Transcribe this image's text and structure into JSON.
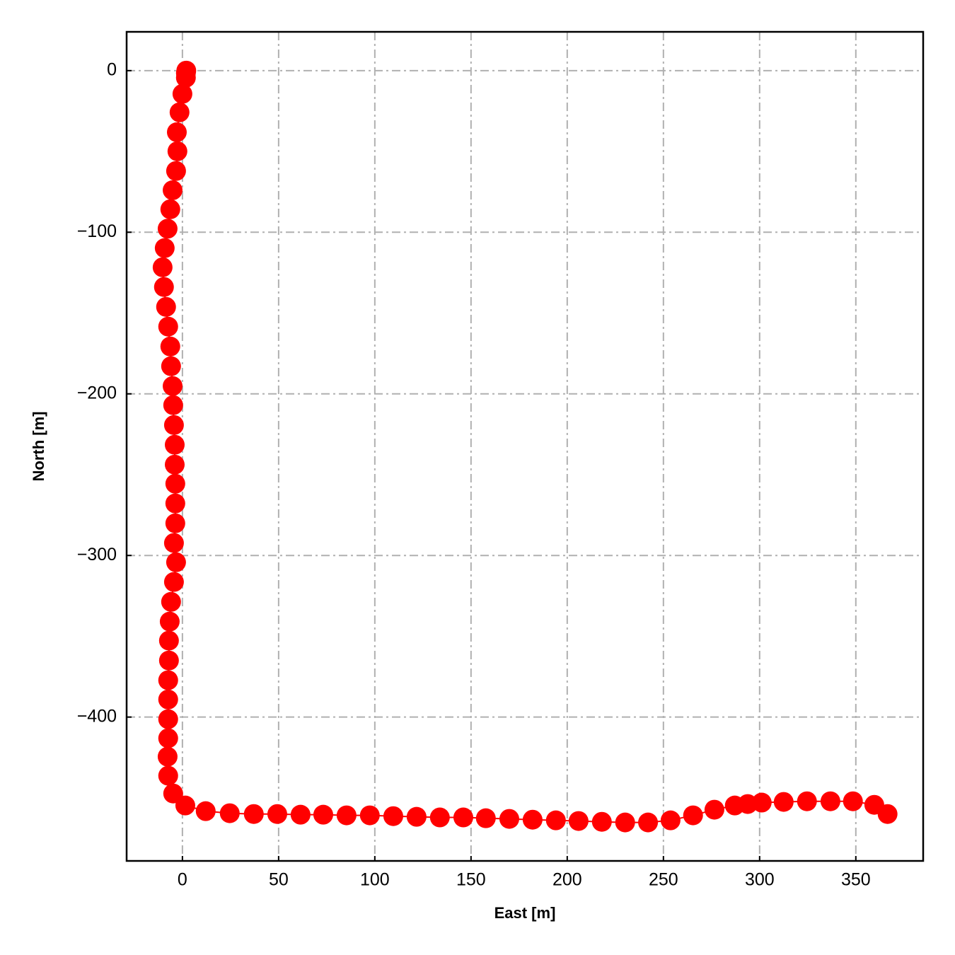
{
  "chart_data": {
    "type": "line",
    "xlabel": "East [m]",
    "ylabel": "North [m]",
    "x": [
      2,
      1.8,
      1.8,
      0,
      -1.5,
      -2.9,
      -2.6,
      -3.3,
      -5.1,
      -6.3,
      -7.7,
      -9.2,
      -10.3,
      -9.6,
      -8.5,
      -7.4,
      -6.3,
      -5.9,
      -5.1,
      -4.8,
      -4.4,
      -4,
      -4,
      -3.7,
      -3.7,
      -3.7,
      -4.4,
      -3.3,
      -4.4,
      -5.9,
      -6.6,
      -7,
      -7,
      -7.4,
      -7.4,
      -7.4,
      -7.4,
      -7.7,
      -7.4,
      -4.8,
      1.5,
      12.1,
      24.6,
      37.1,
      49.3,
      61.4,
      73.2,
      85.3,
      97.4,
      109.6,
      121.7,
      133.8,
      146,
      157.7,
      169.9,
      182,
      194.1,
      205.9,
      218,
      230.1,
      242,
      253.7,
      265.4,
      276.5,
      287.1,
      293.8,
      301.1,
      312.5,
      324.6,
      336.8,
      348.5,
      359.6,
      366.5
    ],
    "series": [
      {
        "color": "#ff0000",
        "values": [
          0,
          -1.5,
          -4.4,
          -14.4,
          -25.8,
          -38.1,
          -49.9,
          -62.1,
          -74,
          -85.8,
          -97.8,
          -109.8,
          -121.7,
          -133.9,
          -146.2,
          -158.4,
          -170.7,
          -182.9,
          -195.2,
          -207,
          -219.3,
          -231.5,
          -243.8,
          -255.6,
          -267.8,
          -280.1,
          -292.3,
          -304.2,
          -316.4,
          -328.7,
          -340.9,
          -352.7,
          -365,
          -377.2,
          -389.1,
          -401.3,
          -413.1,
          -424.5,
          -436.3,
          -447.3,
          -454.7,
          -458.2,
          -459.5,
          -460,
          -460,
          -460.4,
          -460.4,
          -460.8,
          -460.8,
          -461.3,
          -461.7,
          -462.1,
          -462.1,
          -462.6,
          -463,
          -463.5,
          -463.9,
          -464.3,
          -464.8,
          -465.2,
          -465.2,
          -463.9,
          -460.8,
          -457.3,
          -454.7,
          -453.8,
          -452.9,
          -452.5,
          -452.1,
          -452.1,
          -452.1,
          -454.3,
          -460
        ]
      }
    ],
    "xlim": [
      -29,
      385
    ],
    "ylim": [
      -489,
      24
    ],
    "xticks": [
      0,
      50,
      100,
      150,
      200,
      250,
      300,
      350
    ],
    "yticks": [
      {
        "value": -400,
        "label": "−400"
      },
      {
        "value": -300,
        "label": "−300"
      },
      {
        "value": -200,
        "label": "−200"
      },
      {
        "value": -100,
        "label": "−100"
      },
      0
    ],
    "grid": true
  }
}
